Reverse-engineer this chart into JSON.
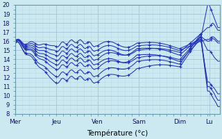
{
  "xlabel": "Température (°c)",
  "xlim": [
    0,
    119
  ],
  "ylim": [
    8,
    20
  ],
  "yticks": [
    8,
    9,
    10,
    11,
    12,
    13,
    14,
    15,
    16,
    17,
    18,
    19,
    20
  ],
  "day_positions": [
    0,
    24,
    48,
    72,
    96,
    113
  ],
  "day_labels": [
    "Mer",
    "Jeu",
    "Ven",
    "Sam",
    "Dim",
    "Lu"
  ],
  "bg_color": "#cce8f0",
  "line_color": "#2233bb",
  "grid_color_major": "#aac8d8",
  "grid_color_minor": "#bbdae8",
  "series": [
    {
      "start": 16.0,
      "jeu_min": 11.5,
      "ven_level": 13.0,
      "sam_level": 13.2,
      "dim_peak": 16.5,
      "dim_end": 10.5,
      "lu": [
        10.5,
        10.2,
        9.8,
        9.5,
        9.2,
        8.8
      ]
    },
    {
      "start": 15.9,
      "jeu_min": 12.2,
      "ven_level": 13.8,
      "sam_level": 13.5,
      "dim_peak": 16.8,
      "dim_end": 11.0,
      "lu": [
        11.0,
        10.8,
        10.5,
        10.2,
        9.8,
        9.5
      ]
    },
    {
      "start": 16.1,
      "jeu_min": 13.0,
      "ven_level": 14.5,
      "sam_level": 13.8,
      "dim_peak": 16.2,
      "dim_end": 11.5,
      "lu": [
        11.5,
        11.2,
        11.0,
        10.8,
        10.5,
        10.2
      ]
    },
    {
      "start": 16.0,
      "jeu_min": 14.0,
      "ven_level": 15.2,
      "sam_level": 14.5,
      "dim_peak": 16.5,
      "dim_end": 16.0,
      "lu": [
        16.0,
        16.2,
        16.3,
        16.2,
        16.0,
        15.8
      ]
    },
    {
      "start": 16.0,
      "jeu_min": 15.0,
      "ven_level": 15.5,
      "sam_level": 15.0,
      "dim_peak": 16.0,
      "dim_end": 16.2,
      "lu": [
        16.2,
        16.4,
        16.5,
        16.4,
        16.2,
        16.0
      ]
    },
    {
      "start": 16.0,
      "jeu_min": 15.5,
      "ven_level": 15.8,
      "sam_level": 15.2,
      "dim_peak": 16.2,
      "dim_end": 20.0,
      "lu": [
        20.0,
        19.5,
        19.0,
        18.5,
        18.0,
        17.5
      ]
    },
    {
      "start": 16.0,
      "jeu_min": 14.5,
      "ven_level": 15.0,
      "sam_level": 14.8,
      "dim_peak": 16.8,
      "dim_end": 17.5,
      "lu": [
        17.5,
        17.8,
        18.0,
        17.8,
        17.5,
        17.2
      ]
    },
    {
      "start": 16.0,
      "jeu_min": 13.5,
      "ven_level": 14.2,
      "sam_level": 14.0,
      "dim_peak": 16.5,
      "dim_end": 15.0,
      "lu": [
        15.0,
        14.8,
        14.5,
        14.2,
        14.0,
        13.8
      ]
    }
  ]
}
